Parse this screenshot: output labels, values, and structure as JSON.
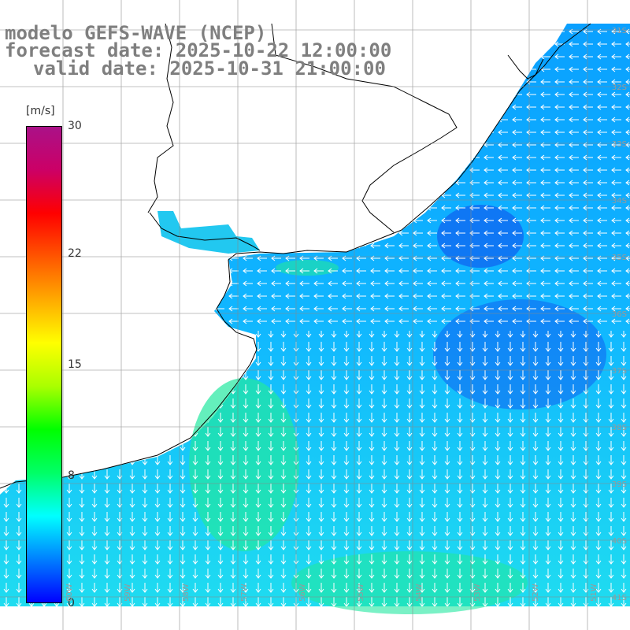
{
  "header": {
    "line1": "modelo GEFS-WAVE (NCEP)",
    "line2": "forecast date: 2025-10-22 12:00:00",
    "line3": "valid date: 2025-10-31 21:00:00"
  },
  "colorbar": {
    "unit": "[m/s]",
    "ticks": [
      {
        "label": "30",
        "value": 30
      },
      {
        "label": "22",
        "value": 22
      },
      {
        "label": "15",
        "value": 15
      },
      {
        "label": "8",
        "value": 8
      },
      {
        "label": "0",
        "value": 0
      }
    ],
    "stops": [
      "#0000ff",
      "#0080ff",
      "#00ffff",
      "#00ff66",
      "#00ff00",
      "#aaff00",
      "#ffff00",
      "#ffaa00",
      "#ff5500",
      "#ff0000",
      "#cc0066",
      "#aa1188"
    ]
  },
  "lat_labels": [
    "31S",
    "32S",
    "33S",
    "34S",
    "35S",
    "36S",
    "37S",
    "38S",
    "39S",
    "40S",
    "41S"
  ],
  "lon_labels": [
    "60W",
    "59W",
    "58W",
    "57W",
    "56W",
    "55W",
    "54W",
    "53W",
    "52W",
    "51W"
  ]
}
